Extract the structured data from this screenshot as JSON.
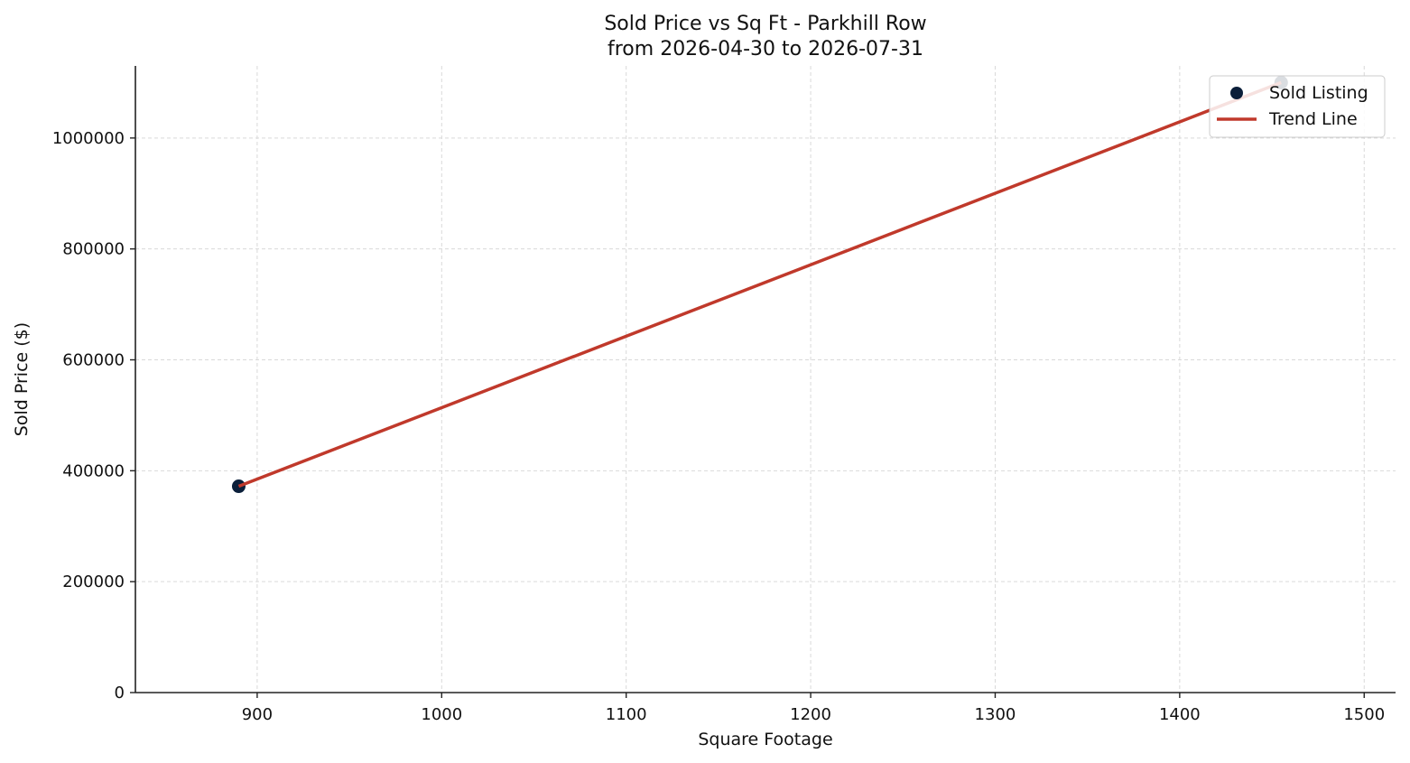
{
  "chart_data": {
    "type": "scatter",
    "title": "Sold Price vs Sq Ft - Parkhill Row",
    "subtitle": "from 2026-04-30 to 2026-07-31",
    "xlabel": "Square Footage",
    "ylabel": "Sold Price ($)",
    "xlim": [
      834,
      1517
    ],
    "ylim": [
      0,
      1130000
    ],
    "xticks": [
      900,
      1000,
      1100,
      1200,
      1300,
      1400,
      1500
    ],
    "yticks": [
      0,
      200000,
      400000,
      600000,
      800000,
      1000000
    ],
    "grid": true,
    "legend_position": "top-right",
    "series": [
      {
        "name": "Sold Listing",
        "kind": "scatter",
        "color": "#0b1f3a",
        "points": [
          {
            "x": 890,
            "y": 372000
          },
          {
            "x": 1455,
            "y": 1100000
          }
        ]
      },
      {
        "name": "Trend Line",
        "kind": "line",
        "color": "#c0392b",
        "points": [
          {
            "x": 890,
            "y": 372000
          },
          {
            "x": 1455,
            "y": 1100000
          }
        ]
      }
    ]
  }
}
